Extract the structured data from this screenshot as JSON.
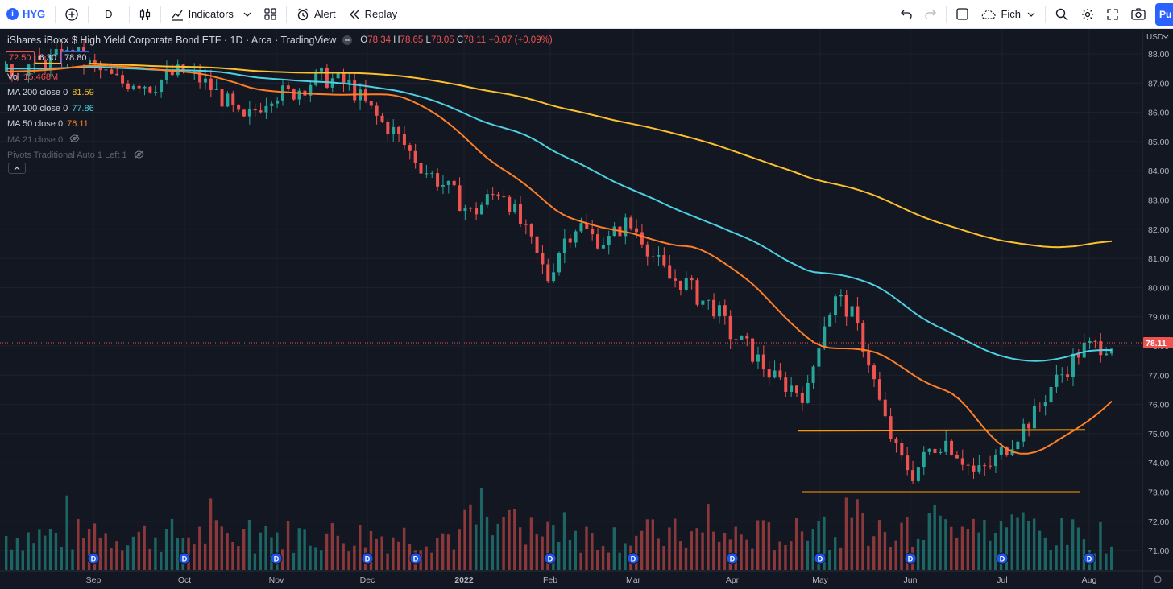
{
  "toolbar": {
    "symbol": "HYG",
    "interval": "D",
    "indicators_label": "Indicators",
    "alert_label": "Alert",
    "replay_label": "Replay",
    "layout_label": "Fich",
    "publish_label": "Pu"
  },
  "legend": {
    "title": "iShares iBoxx $ High Yield Corporate Bond ETF · 1D · Arca · TradingView",
    "open_label": "O",
    "open": "78.34",
    "high_label": "H",
    "high": "78.65",
    "low_label": "L",
    "low": "78.05",
    "close_label": "C",
    "close": "78.11",
    "change": "+0.07 (+0.09%)",
    "bid": "72.50",
    "spread": "6.30",
    "ask": "78.80"
  },
  "indicators": [
    {
      "name": "Vol",
      "value": "15.468M"
    },
    {
      "name": "MA 200 close 0",
      "value": "81.59",
      "color": "#fbc02d"
    },
    {
      "name": "MA 100 close 0",
      "value": "77.86",
      "color": "#4dd0e1"
    },
    {
      "name": "MA 50 close 0",
      "value": "76.11",
      "color": "#ff7f27"
    },
    {
      "name": "MA 21 close 0",
      "value": ""
    },
    {
      "name": "Pivots Traditional Auto 1 Left 1",
      "value": ""
    }
  ],
  "chart_data": {
    "type": "candlestick",
    "currency": "USD",
    "y_ticks": [
      "88.00",
      "87.00",
      "86.00",
      "85.00",
      "84.00",
      "83.00",
      "82.00",
      "81.00",
      "80.00",
      "79.00",
      "78.00",
      "77.00",
      "76.00",
      "75.00",
      "74.00",
      "73.00",
      "72.00",
      "71.00"
    ],
    "ylim": [
      70.4,
      88.3
    ],
    "x_ticks": [
      "Sep",
      "Oct",
      "Nov",
      "Dec",
      "2022",
      "Feb",
      "Mar",
      "Apr",
      "May",
      "Jun",
      "Jul",
      "Aug"
    ],
    "current_price": "78.11",
    "close_points": [
      [
        0,
        87.4
      ],
      [
        6,
        87.6
      ],
      [
        12,
        87.8
      ],
      [
        18,
        88.0
      ],
      [
        22,
        87.6
      ],
      [
        26,
        87.3
      ],
      [
        30,
        87.0
      ],
      [
        34,
        87.1
      ],
      [
        38,
        86.9
      ],
      [
        42,
        87.2
      ],
      [
        46,
        87.4
      ],
      [
        50,
        87.2
      ],
      [
        54,
        86.8
      ],
      [
        58,
        86.3
      ],
      [
        62,
        85.6
      ],
      [
        66,
        86.2
      ],
      [
        70,
        86.7
      ],
      [
        74,
        86.6
      ],
      [
        78,
        86.9
      ],
      [
        82,
        87.2
      ],
      [
        86,
        87.1
      ],
      [
        90,
        86.9
      ],
      [
        94,
        86.3
      ],
      [
        98,
        85.7
      ],
      [
        102,
        85.3
      ],
      [
        106,
        84.6
      ],
      [
        110,
        84.0
      ],
      [
        114,
        83.6
      ],
      [
        118,
        83.1
      ],
      [
        122,
        82.5
      ],
      [
        126,
        83.0
      ],
      [
        130,
        83.4
      ],
      [
        134,
        82.4
      ],
      [
        138,
        81.4
      ],
      [
        142,
        80.3
      ],
      [
        146,
        81.6
      ],
      [
        150,
        82.2
      ],
      [
        154,
        81.7
      ],
      [
        158,
        81.6
      ],
      [
        162,
        82.2
      ],
      [
        166,
        81.9
      ],
      [
        170,
        81.0
      ],
      [
        174,
        80.3
      ],
      [
        178,
        80.2
      ],
      [
        182,
        79.6
      ],
      [
        186,
        79.3
      ],
      [
        190,
        78.4
      ],
      [
        194,
        78.0
      ],
      [
        198,
        77.4
      ],
      [
        202,
        76.8
      ],
      [
        206,
        76.6
      ],
      [
        210,
        76.3
      ],
      [
        214,
        78.7
      ],
      [
        218,
        79.7
      ],
      [
        222,
        79.0
      ],
      [
        226,
        77.6
      ],
      [
        230,
        75.6
      ],
      [
        234,
        74.2
      ],
      [
        238,
        73.6
      ],
      [
        242,
        74.4
      ],
      [
        246,
        74.8
      ],
      [
        250,
        74.3
      ],
      [
        254,
        73.6
      ],
      [
        258,
        73.9
      ],
      [
        262,
        74.5
      ],
      [
        266,
        75.1
      ],
      [
        270,
        75.7
      ],
      [
        274,
        76.6
      ],
      [
        278,
        77.2
      ],
      [
        282,
        77.9
      ],
      [
        286,
        78.0
      ],
      [
        290,
        78.1
      ]
    ],
    "series": [
      {
        "name": "MA 200 close 0",
        "last": 81.59,
        "color": "#fbc02d"
      },
      {
        "name": "MA 100 close 0",
        "last": 77.86,
        "color": "#4dd0e1"
      },
      {
        "name": "MA 50 close 0",
        "last": 76.11,
        "color": "#ff7f27"
      }
    ],
    "horizontal_lines": [
      75.1,
      73.0
    ],
    "volume_markers": "D"
  }
}
